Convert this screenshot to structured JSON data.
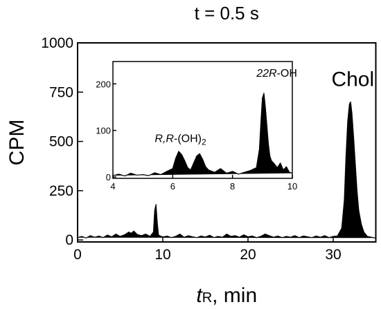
{
  "chart_data": [
    {
      "type": "area",
      "title": "t = 0.5 s",
      "x_label": [
        "t",
        "R",
        ", min"
      ],
      "y_label": "CPM",
      "annotations": [
        {
          "text": "Chol",
          "x": 32.3,
          "y": 780
        }
      ],
      "xlim": [
        0,
        35
      ],
      "xticks": [
        0,
        10,
        20,
        30
      ],
      "ylim": [
        -10,
        1000
      ],
      "yticks": [
        0,
        250,
        500,
        750,
        1000
      ],
      "color": "#000000",
      "x": [
        0,
        0.5,
        1,
        1.5,
        2,
        2.5,
        3,
        3.5,
        4,
        4.5,
        5,
        5.5,
        6,
        6.3,
        6.6,
        7,
        7.5,
        8,
        8.5,
        8.9,
        9.05,
        9.2,
        9.35,
        9.5,
        10,
        10.5,
        11,
        11.5,
        12,
        12.5,
        13,
        13.5,
        14,
        14.5,
        15,
        15.5,
        16,
        16.5,
        17,
        17.5,
        18,
        18.5,
        19,
        19.5,
        20,
        20.5,
        21,
        21.5,
        22,
        22.5,
        23,
        23.5,
        24,
        24.5,
        25,
        25.5,
        26,
        26.5,
        27,
        27.5,
        28,
        28.5,
        29,
        29.5,
        30,
        30.5,
        31,
        31.3,
        31.5,
        31.7,
        31.9,
        32.05,
        32.2,
        32.4,
        32.6,
        32.8,
        33.0,
        33.3,
        33.6,
        34,
        34.5,
        35
      ],
      "values": [
        12,
        18,
        10,
        22,
        14,
        20,
        12,
        25,
        16,
        30,
        18,
        26,
        40,
        34,
        45,
        28,
        22,
        30,
        18,
        40,
        150,
        180,
        90,
        25,
        15,
        20,
        12,
        18,
        30,
        14,
        22,
        16,
        12,
        20,
        15,
        24,
        12,
        18,
        14,
        30,
        18,
        22,
        14,
        26,
        16,
        20,
        12,
        18,
        30,
        22,
        14,
        20,
        12,
        18,
        14,
        22,
        12,
        20,
        16,
        12,
        20,
        14,
        22,
        12,
        18,
        20,
        60,
        200,
        420,
        600,
        690,
        700,
        640,
        520,
        380,
        250,
        150,
        80,
        40,
        18,
        14,
        10
      ]
    },
    {
      "type": "area",
      "annotations": [
        {
          "text": [
            "R,R",
            "-(OH)",
            "2"
          ],
          "x": 5.4,
          "y": 75
        },
        {
          "text": [
            "22R",
            "-OH"
          ],
          "x": 8.8,
          "y": 215
        }
      ],
      "xlim": [
        4,
        10
      ],
      "xticks": [
        4,
        6,
        8,
        10
      ],
      "ylim": [
        -3,
        248
      ],
      "yticks": [
        0,
        100,
        200
      ],
      "color": "#000000",
      "x": [
        4,
        4.2,
        4.4,
        4.6,
        4.8,
        5,
        5.2,
        5.4,
        5.6,
        5.8,
        6,
        6.1,
        6.2,
        6.3,
        6.4,
        6.5,
        6.6,
        6.7,
        6.8,
        6.9,
        7,
        7.1,
        7.2,
        7.4,
        7.6,
        7.8,
        8,
        8.2,
        8.4,
        8.6,
        8.8,
        8.9,
        8.95,
        9.0,
        9.05,
        9.1,
        9.15,
        9.2,
        9.25,
        9.3,
        9.4,
        9.5,
        9.6,
        9.7,
        9.8,
        9.9,
        10
      ],
      "values": [
        3,
        6,
        2,
        8,
        4,
        5,
        3,
        9,
        5,
        12,
        18,
        40,
        55,
        48,
        35,
        20,
        15,
        30,
        45,
        50,
        38,
        22,
        15,
        10,
        18,
        8,
        12,
        6,
        10,
        14,
        20,
        60,
        120,
        170,
        180,
        150,
        110,
        70,
        45,
        35,
        28,
        20,
        30,
        15,
        22,
        10,
        8
      ]
    }
  ]
}
